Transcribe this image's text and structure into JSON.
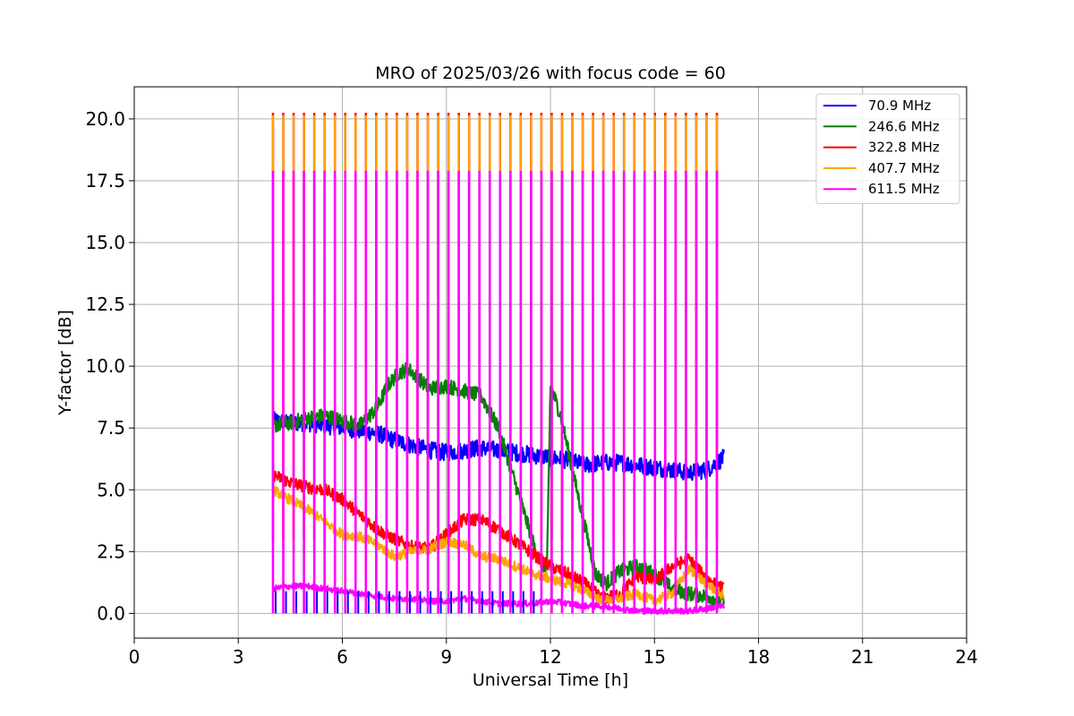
{
  "chart_data": {
    "type": "line",
    "title": "MRO of 2025/03/26 with focus code = 60",
    "xlabel": "Universal Time [h]",
    "ylabel": "Y-factor [dB]",
    "xlim": [
      0,
      24
    ],
    "ylim": [
      -1.0,
      21.3
    ],
    "xticks": [
      0,
      3,
      6,
      9,
      12,
      15,
      18,
      21,
      24
    ],
    "xtick_labels": [
      "0",
      "3",
      "6",
      "9",
      "12",
      "15",
      "18",
      "21",
      "24"
    ],
    "yticks": [
      0.0,
      2.5,
      5.0,
      7.5,
      10.0,
      12.5,
      15.0,
      17.5,
      20.0
    ],
    "ytick_labels": [
      "0.0",
      "2.5",
      "5.0",
      "7.5",
      "10.0",
      "12.5",
      "15.0",
      "17.5",
      "20.0"
    ],
    "grid": true,
    "legend_position": "top-right",
    "calibration_spikes": {
      "start_h": 4.0,
      "end_h": 16.8,
      "count": 44,
      "orange_top": 20.2,
      "magenta_top": 17.9
    },
    "series": [
      {
        "name": " 70.9 MHz",
        "color": "#0000ff",
        "x": [
          4.0,
          4.5,
          5.0,
          5.5,
          6.0,
          6.5,
          7.0,
          7.5,
          8.0,
          8.5,
          9.0,
          9.5,
          10.0,
          10.5,
          11.0,
          11.5,
          12.0,
          12.5,
          13.0,
          13.5,
          14.0,
          14.5,
          15.0,
          15.5,
          16.0,
          16.5,
          17.0
        ],
        "y": [
          7.8,
          7.7,
          7.7,
          7.6,
          7.5,
          7.4,
          7.3,
          7.0,
          6.8,
          6.6,
          6.5,
          6.6,
          6.7,
          6.6,
          6.5,
          6.4,
          6.3,
          6.2,
          6.0,
          6.1,
          6.1,
          6.0,
          5.9,
          5.8,
          5.7,
          5.8,
          6.3
        ],
        "noise": 0.35
      },
      {
        "name": "246.6 MHz",
        "color": "#008000",
        "x": [
          4.0,
          4.5,
          5.0,
          5.5,
          6.0,
          6.5,
          7.0,
          7.3,
          7.6,
          7.9,
          8.2,
          8.5,
          9.0,
          9.5,
          10.0,
          10.5,
          11.0,
          11.3,
          11.6,
          11.9,
          12.0,
          12.3,
          12.6,
          13.0,
          13.3,
          13.6,
          14.0,
          14.5,
          15.0,
          15.5,
          16.0,
          16.5,
          17.0
        ],
        "y": [
          7.6,
          7.7,
          7.9,
          8.0,
          7.8,
          7.6,
          8.3,
          9.2,
          9.7,
          9.9,
          9.5,
          9.1,
          9.2,
          9.0,
          8.8,
          7.5,
          5.2,
          3.8,
          2.4,
          1.7,
          9.2,
          8.0,
          6.0,
          3.5,
          1.6,
          1.2,
          1.7,
          1.9,
          1.6,
          1.0,
          0.8,
          0.7,
          0.5
        ],
        "noise": 0.3
      },
      {
        "name": "322.8 MHz",
        "color": "#ff0000",
        "x": [
          4.0,
          4.5,
          5.0,
          5.5,
          6.0,
          6.5,
          7.0,
          7.5,
          8.0,
          8.5,
          9.0,
          9.5,
          10.0,
          10.5,
          11.0,
          11.5,
          12.0,
          12.5,
          13.0,
          13.5,
          14.0,
          14.5,
          15.0,
          15.5,
          16.0,
          16.5,
          17.0
        ],
        "y": [
          5.6,
          5.3,
          5.1,
          5.0,
          4.6,
          4.0,
          3.4,
          3.0,
          2.7,
          2.6,
          3.2,
          3.8,
          3.8,
          3.4,
          2.9,
          2.4,
          1.9,
          1.6,
          1.2,
          0.6,
          0.8,
          1.5,
          1.3,
          1.9,
          2.2,
          1.4,
          1.0
        ],
        "noise": 0.25
      },
      {
        "name": "407.7 MHz",
        "color": "#ffa500",
        "x": [
          4.0,
          4.5,
          5.0,
          5.5,
          6.0,
          6.5,
          7.0,
          7.5,
          8.0,
          8.5,
          9.0,
          9.5,
          10.0,
          10.5,
          11.0,
          11.5,
          12.0,
          12.5,
          13.0,
          13.5,
          14.0,
          14.5,
          15.0,
          15.5,
          16.0,
          16.5,
          17.0
        ],
        "y": [
          5.0,
          4.6,
          4.2,
          3.7,
          3.2,
          3.1,
          2.8,
          2.3,
          2.5,
          2.6,
          2.9,
          2.8,
          2.3,
          2.2,
          1.9,
          1.6,
          1.4,
          1.2,
          0.9,
          0.5,
          0.6,
          0.8,
          0.5,
          0.8,
          1.8,
          1.2,
          0.7
        ],
        "noise": 0.2
      },
      {
        "name": "611.5 MHz",
        "color": "#ff00ff",
        "x": [
          4.0,
          4.5,
          5.0,
          5.5,
          6.0,
          6.5,
          7.0,
          7.5,
          8.0,
          8.5,
          9.0,
          9.5,
          10.0,
          10.5,
          11.0,
          11.5,
          12.0,
          12.5,
          13.0,
          13.5,
          14.0,
          14.5,
          15.0,
          15.5,
          16.0,
          16.5,
          17.0
        ],
        "y": [
          1.0,
          1.1,
          1.1,
          1.0,
          0.9,
          0.8,
          0.7,
          0.6,
          0.6,
          0.5,
          0.5,
          0.6,
          0.5,
          0.4,
          0.4,
          0.4,
          0.5,
          0.4,
          0.3,
          0.3,
          0.2,
          0.1,
          0.1,
          0.1,
          0.1,
          0.2,
          0.3
        ],
        "noise": 0.12
      }
    ]
  }
}
